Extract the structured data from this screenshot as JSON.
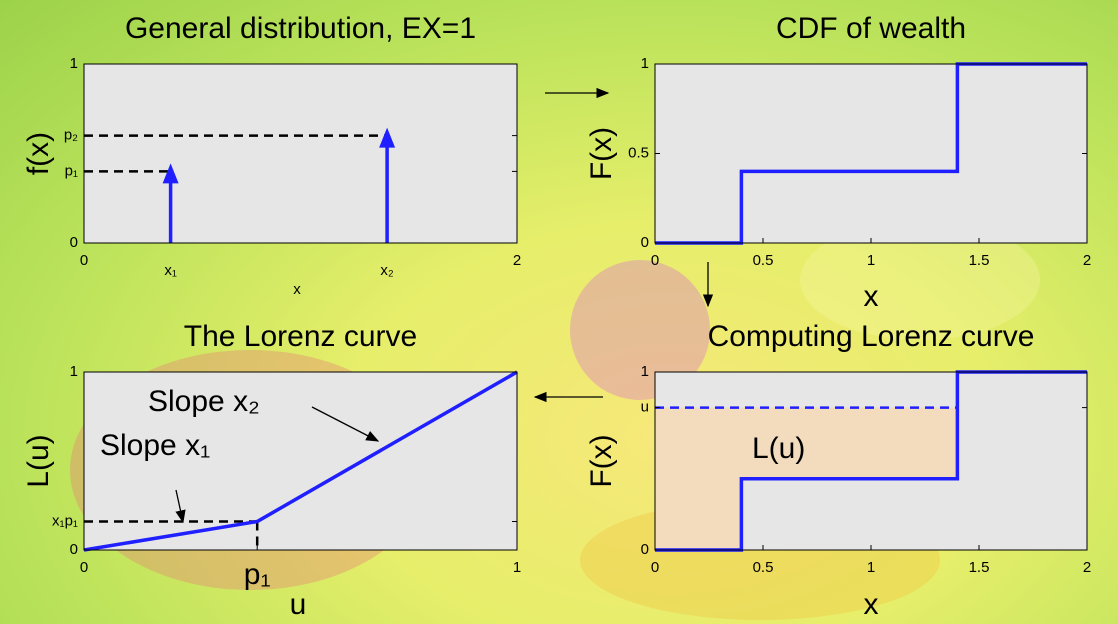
{
  "chart_data": [
    {
      "type": "stem",
      "title": "General distribution, EX=1",
      "xlabel": "x",
      "ylabel": "f(x)",
      "series": [
        {
          "color": "#1f1fff",
          "x": [
            0.4,
            1.4
          ],
          "values": [
            0.4,
            0.6
          ]
        }
      ],
      "xlim": [
        0,
        2
      ],
      "xticks": [
        0,
        {
          "value": 0.4,
          "label": "x₁"
        },
        {
          "value": 1.4,
          "label": "x₂"
        },
        2
      ],
      "ylim": [
        0,
        1
      ],
      "yticks": [
        0,
        {
          "value": 0.4,
          "label": "p₁"
        },
        {
          "value": 0.6,
          "label": "p₂"
        },
        1
      ],
      "dashed_guides": true
    },
    {
      "type": "line",
      "title": "CDF of wealth",
      "xlabel": "x",
      "ylabel": "F(x)",
      "series": [
        {
          "color": "#1f1fff",
          "x": [
            0,
            0.4,
            0.4,
            1.4,
            1.4,
            2
          ],
          "values": [
            0,
            0,
            0.4,
            0.4,
            1,
            1
          ]
        }
      ],
      "xlim": [
        0,
        2
      ],
      "xticks": [
        0,
        0.5,
        1,
        1.5,
        2
      ],
      "ylim": [
        0,
        1
      ],
      "yticks": [
        0,
        0.5,
        1
      ]
    },
    {
      "type": "line",
      "title": "The Lorenz curve",
      "xlabel": "u",
      "ylabel": "L(u)",
      "series": [
        {
          "color": "#1f1fff",
          "x": [
            0,
            0.4,
            1
          ],
          "values": [
            0,
            0.16,
            1
          ]
        }
      ],
      "xlim": [
        0,
        1
      ],
      "xticks": [
        0,
        {
          "value": 0.4,
          "label": "p₁"
        },
        1
      ],
      "ylim": [
        0,
        1
      ],
      "yticks": [
        0,
        {
          "value": 0.16,
          "label": "x₁p₁"
        },
        1
      ],
      "dashed_guides": true,
      "annotations": [
        "Slope x₂",
        "Slope x₁"
      ]
    },
    {
      "type": "line",
      "title": "Computing Lorenz curve",
      "xlabel": "x",
      "ylabel": "F(x)",
      "series": [
        {
          "color": "#1f1fff",
          "x": [
            0,
            0.4,
            0.4,
            1.4,
            1.4,
            2
          ],
          "values": [
            0,
            0,
            0.4,
            0.4,
            1,
            1
          ]
        }
      ],
      "xlim": [
        0,
        2
      ],
      "xticks": [
        0,
        0.5,
        1,
        1.5,
        2
      ],
      "ylim": [
        0,
        1
      ],
      "yticks": [
        0,
        {
          "value": 0.8,
          "label": "u"
        },
        1
      ],
      "shade": "#f3dcbd",
      "annotations": [
        "L(u)"
      ]
    }
  ]
}
